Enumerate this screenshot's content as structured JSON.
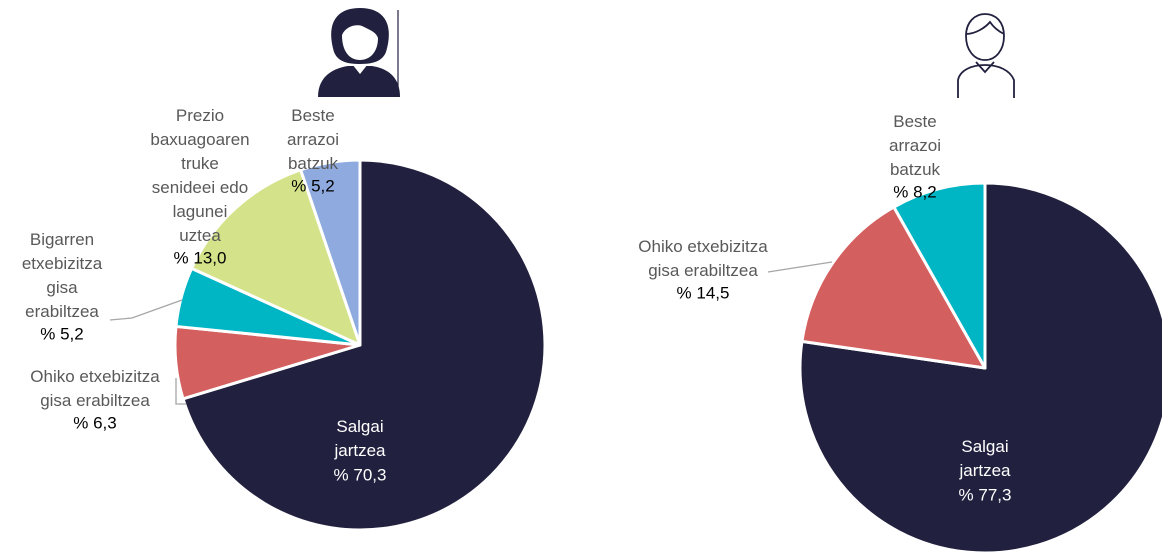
{
  "chart_data": [
    {
      "type": "pie",
      "categories": [
        "Salgai\njartzea",
        "Ohiko etxebizitza\ngisa erabiltzea",
        "Bigarren\netxebizitza\ngisa\nerabiltzea",
        "Prezio\nbaxuagoaren\ntruke\nsenideei edo\nlagunei\nuztea",
        "Beste\narrazoi\nbatzuk"
      ],
      "values": [
        70.3,
        6.3,
        5.2,
        13.0,
        5.2
      ],
      "value_labels": [
        "% 70,3",
        "% 6,3",
        "% 5,2",
        "% 13,0",
        "% 5,2"
      ],
      "colors": [
        "#21213f",
        "#d45f5f",
        "#00b5c4",
        "#d4e38a",
        "#8eaadf"
      ]
    },
    {
      "type": "pie",
      "categories": [
        "Salgai\njartzea",
        "Ohiko etxebizitza\ngisa erabiltzea",
        "Beste\narrazoi\nbatzuk"
      ],
      "values": [
        77.3,
        14.5,
        8.2
      ],
      "value_labels": [
        "% 77,3",
        "% 14,5",
        "% 8,2"
      ],
      "colors": [
        "#21213f",
        "#d45f5f",
        "#00b5c4"
      ]
    }
  ]
}
